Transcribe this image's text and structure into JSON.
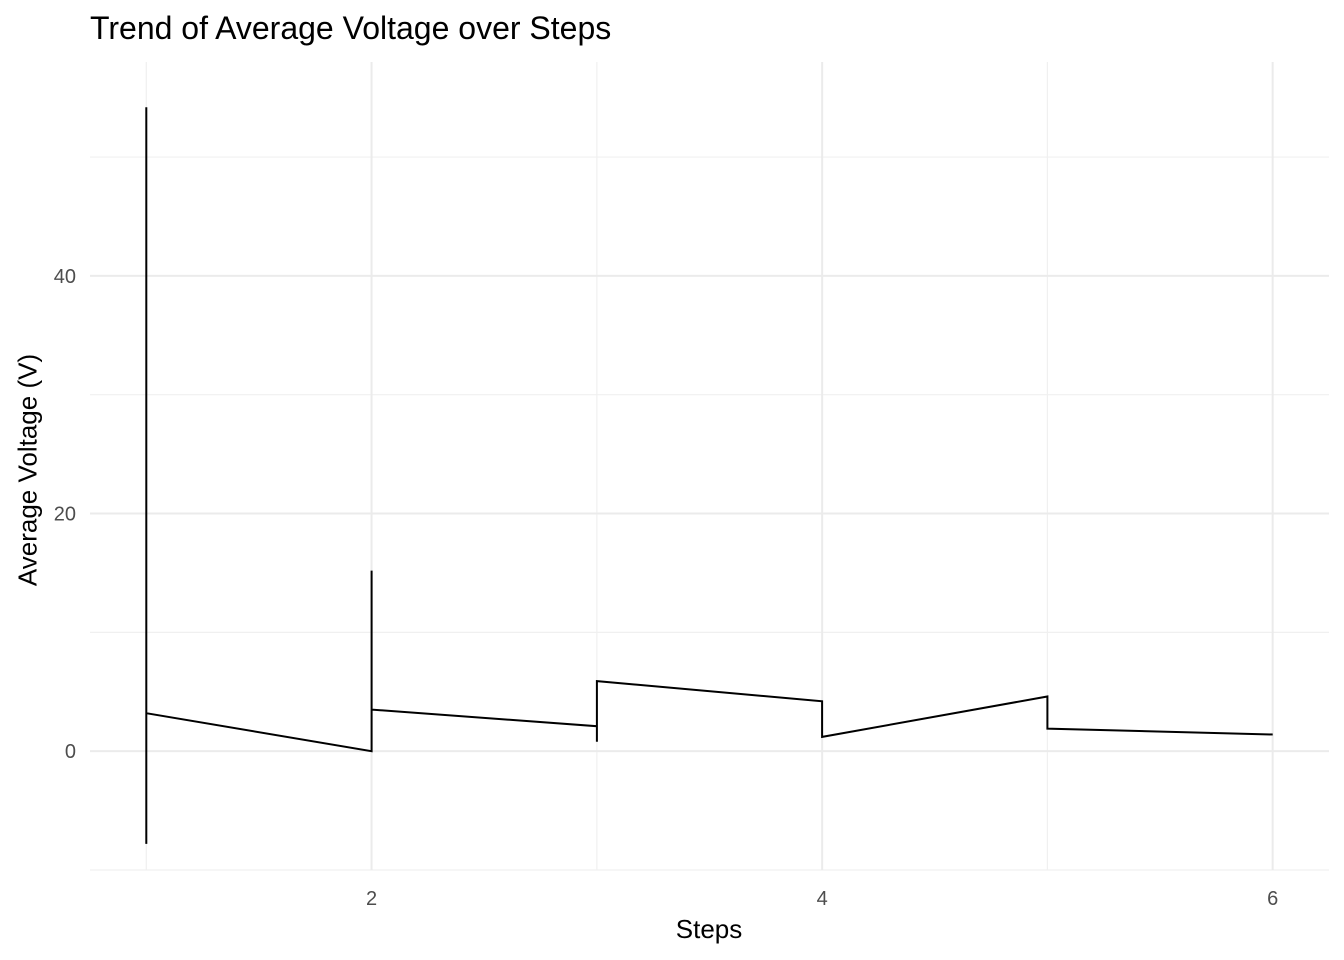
{
  "chart_data": {
    "type": "line",
    "title": "Trend of Average Voltage over Steps",
    "xlabel": "Steps",
    "ylabel": "Average Voltage (V)",
    "xlim": [
      0.75,
      6.25
    ],
    "ylim": [
      -10,
      58
    ],
    "x_ticks": [
      2,
      4,
      6
    ],
    "y_ticks": [
      0,
      20,
      40
    ],
    "grid": true,
    "legend": "none",
    "color": "#000000",
    "series": [
      {
        "x": [
          1,
          1,
          1,
          2,
          2,
          2,
          3,
          3,
          3,
          4,
          4,
          4,
          5,
          5,
          5,
          6
        ],
        "values": [
          -7.8,
          54.2,
          3.2,
          0.0,
          15.2,
          3.5,
          2.1,
          0.8,
          5.9,
          4.2,
          1.8,
          1.2,
          4.6,
          3.4,
          1.9,
          1.4
        ]
      }
    ]
  }
}
